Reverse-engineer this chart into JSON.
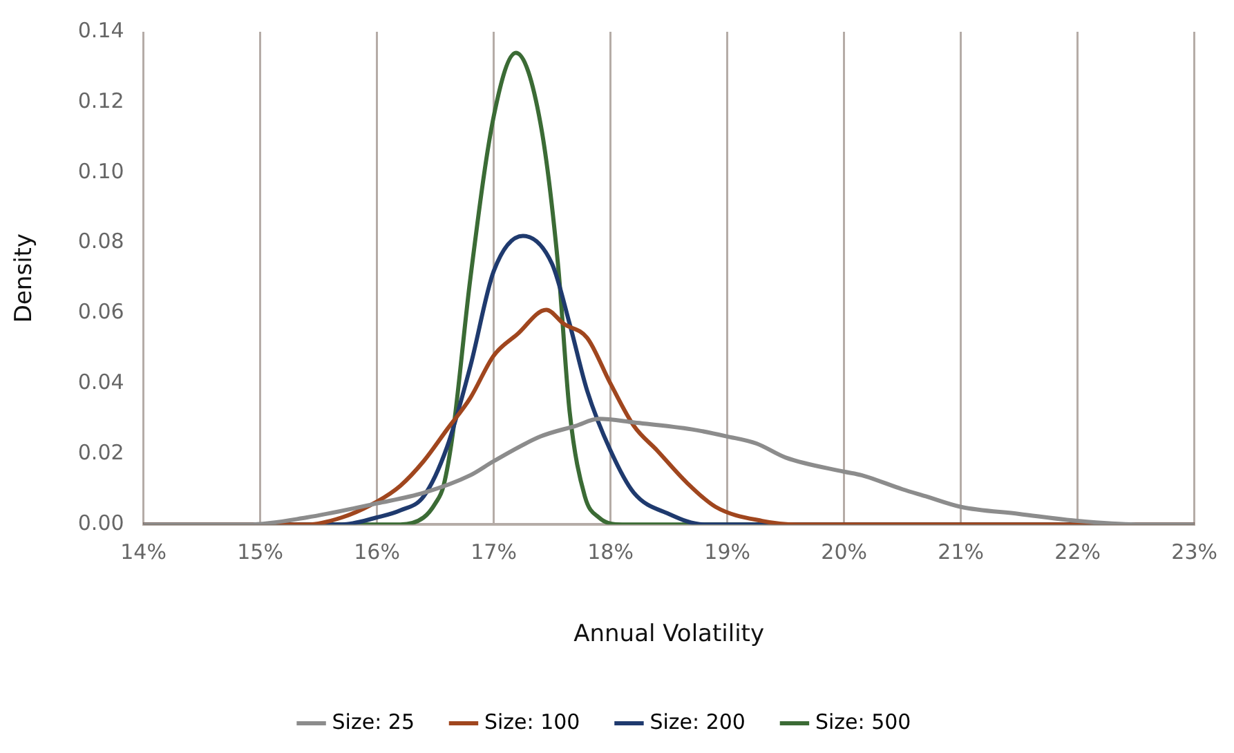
{
  "chart_data": {
    "type": "line",
    "xlabel": "Annual Volatility",
    "ylabel": "Density",
    "xlim": [
      14,
      23
    ],
    "ylim": [
      0,
      0.14
    ],
    "xticks": [
      {
        "value": 14,
        "label": "14%"
      },
      {
        "value": 15,
        "label": "15%"
      },
      {
        "value": 16,
        "label": "16%"
      },
      {
        "value": 17,
        "label": "17%"
      },
      {
        "value": 18,
        "label": "18%"
      },
      {
        "value": 19,
        "label": "19%"
      },
      {
        "value": 20,
        "label": "20%"
      },
      {
        "value": 21,
        "label": "21%"
      },
      {
        "value": 22,
        "label": "22%"
      },
      {
        "value": 23,
        "label": "23%"
      }
    ],
    "yticks": [
      {
        "value": 0,
        "label": "0.00"
      },
      {
        "value": 0.02,
        "label": "0.02"
      },
      {
        "value": 0.04,
        "label": "0.04"
      },
      {
        "value": 0.06,
        "label": "0.06"
      },
      {
        "value": 0.08,
        "label": "0.08"
      },
      {
        "value": 0.1,
        "label": "0.10"
      },
      {
        "value": 0.12,
        "label": "0.12"
      },
      {
        "value": 0.14,
        "label": "0.14"
      }
    ],
    "grid": "x",
    "legend": "bottom",
    "marker": "none",
    "line_style": "solid",
    "series": [
      {
        "name": "Size: 25",
        "color": "#8c8c8c",
        "x": [
          14,
          14.9,
          15.4,
          16,
          16.4,
          16.8,
          17,
          17.4,
          17.7,
          17.9,
          18.2,
          18.7,
          19,
          19.25,
          19.5,
          20,
          20.15,
          20.5,
          20.7,
          21,
          21.5,
          22,
          22.5,
          23
        ],
        "values": [
          0,
          0,
          0.002,
          0.006,
          0.009,
          0.014,
          0.018,
          0.025,
          0.028,
          0.03,
          0.029,
          0.027,
          0.025,
          0.023,
          0.019,
          0.015,
          0.014,
          0.01,
          0.008,
          0.005,
          0.003,
          0.001,
          0,
          0
        ]
      },
      {
        "name": "Size: 100",
        "color": "#a0461e",
        "x": [
          14,
          15.4,
          15.7,
          16,
          16.2,
          16.4,
          16.6,
          16.8,
          17,
          17.2,
          17.45,
          17.6,
          17.8,
          18,
          18.2,
          18.4,
          18.65,
          18.9,
          19.3,
          19.6,
          23
        ],
        "values": [
          0,
          0,
          0.002,
          0.0065,
          0.011,
          0.018,
          0.027,
          0.036,
          0.048,
          0.054,
          0.061,
          0.057,
          0.053,
          0.04,
          0.028,
          0.021,
          0.012,
          0.005,
          0.001,
          0,
          0
        ]
      },
      {
        "name": "Size: 200",
        "color": "#1f3a6e",
        "x": [
          14,
          15.7,
          16,
          16.2,
          16.4,
          16.6,
          16.8,
          17,
          17.25,
          17.5,
          17.65,
          17.8,
          18,
          18.2,
          18.5,
          18.8,
          23
        ],
        "values": [
          0,
          0,
          0.002,
          0.004,
          0.008,
          0.022,
          0.045,
          0.072,
          0.082,
          0.074,
          0.057,
          0.038,
          0.021,
          0.009,
          0.003,
          0,
          0
        ]
      },
      {
        "name": "Size: 500",
        "color": "#3b6b35",
        "x": [
          14,
          16.2,
          16.4,
          16.5,
          16.57,
          16.65,
          16.8,
          17,
          17.19,
          17.4,
          17.55,
          17.65,
          17.78,
          17.9,
          18.1,
          23
        ],
        "values": [
          0,
          0,
          0.002,
          0.006,
          0.011,
          0.026,
          0.07,
          0.116,
          0.134,
          0.114,
          0.074,
          0.032,
          0.008,
          0.002,
          0,
          0
        ]
      }
    ]
  }
}
